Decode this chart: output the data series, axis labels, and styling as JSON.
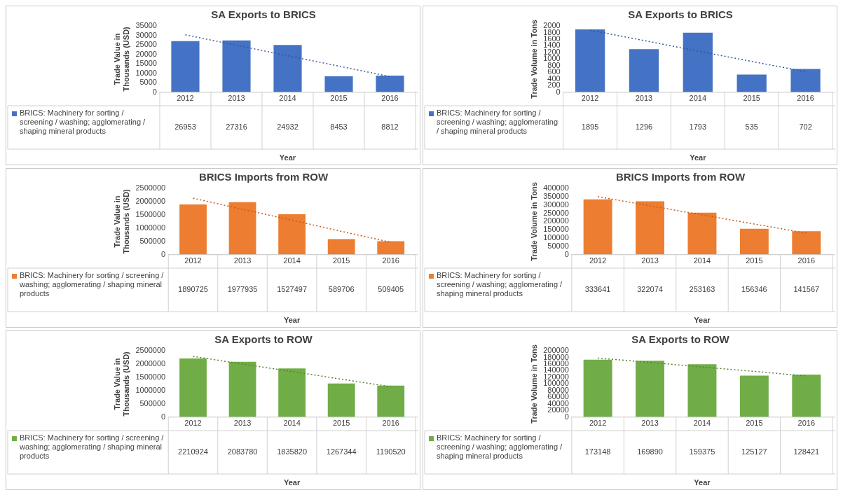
{
  "chart_data": [
    {
      "type": "bar",
      "title": "SA Exports to BRICS",
      "ylabel": "Trade Value in Thousands (USD)",
      "xlabel": "Year",
      "categories": [
        "2012",
        "2013",
        "2014",
        "2015",
        "2016"
      ],
      "ylim": [
        0,
        35000
      ],
      "yticks": [
        0,
        5000,
        10000,
        15000,
        20000,
        25000,
        30000,
        35000
      ],
      "grid": false,
      "legend": "bottom",
      "series": [
        {
          "name": "BRICS: Machinery for sorting / screening / washing; agglomerating / shaping mineral products",
          "color": "#4472c4",
          "values": [
            26953,
            27316,
            24932,
            8453,
            8812
          ],
          "value_labels": [
            "26953",
            "27316",
            "24932",
            "8453",
            "8812"
          ]
        },
        {
          "type": "line",
          "color": "#2f5597",
          "line_style": "dotted",
          "marker": "none",
          "values": [
            30300,
            24800,
            19300,
            13800,
            8300
          ]
        }
      ]
    },
    {
      "type": "bar",
      "title": "SA Exports to BRICS",
      "ylabel": "Trade Volume in Tons",
      "xlabel": "Year",
      "categories": [
        "2012",
        "2013",
        "2014",
        "2015",
        "2016"
      ],
      "ylim": [
        0,
        2000
      ],
      "yticks": [
        0,
        200,
        400,
        600,
        800,
        1000,
        1200,
        1400,
        1600,
        1800,
        2000
      ],
      "grid": false,
      "legend": "bottom",
      "series": [
        {
          "name": "BRICS: Machinery for sorting / screening / washing; agglomerating / shaping mineral products",
          "color": "#4472c4",
          "values": [
            1895,
            1296,
            1793,
            535,
            702
          ],
          "value_labels": [
            "1895",
            "1296",
            "1793",
            "535",
            "702"
          ]
        },
        {
          "type": "line",
          "color": "#2f5597",
          "line_style": "dotted",
          "marker": "none",
          "values": [
            1870,
            1560,
            1240,
            930,
            620
          ]
        }
      ]
    },
    {
      "type": "bar",
      "title": "BRICS Imports from ROW",
      "ylabel": "Trade Value in Thousands (USD)",
      "xlabel": "Year",
      "categories": [
        "2012",
        "2013",
        "2014",
        "2015",
        "2016"
      ],
      "ylim": [
        0,
        2500000
      ],
      "yticks": [
        0,
        500000,
        1000000,
        1500000,
        2000000,
        2500000
      ],
      "grid": false,
      "legend": "bottom",
      "series": [
        {
          "name": "BRICS: Machinery for sorting / screening / washing; agglomerating / shaping mineral products",
          "color": "#ed7d31",
          "values": [
            1890725,
            1977935,
            1527497,
            589706,
            509405
          ],
          "value_labels": [
            "1890725",
            "1977935",
            "1527497",
            "589706",
            "509405"
          ]
        },
        {
          "type": "line",
          "color": "#c55a11",
          "line_style": "dotted",
          "marker": "none",
          "values": [
            2130000,
            1710000,
            1300000,
            880000,
            470000
          ]
        }
      ]
    },
    {
      "type": "bar",
      "title": "BRICS Imports from ROW",
      "ylabel": "Trade Volume in Tons",
      "xlabel": "Year",
      "categories": [
        "2012",
        "2013",
        "2014",
        "2015",
        "2016"
      ],
      "ylim": [
        0,
        400000
      ],
      "yticks": [
        0,
        50000,
        100000,
        150000,
        200000,
        250000,
        300000,
        350000,
        400000
      ],
      "grid": false,
      "legend": "bottom",
      "series": [
        {
          "name": "BRICS: Machinery for sorting / screening / washing; agglomerating / shaping mineral products",
          "color": "#ed7d31",
          "values": [
            333641,
            322074,
            253163,
            156346,
            141567
          ],
          "value_labels": [
            "333641",
            "322074",
            "253163",
            "156346",
            "141567"
          ]
        },
        {
          "type": "line",
          "color": "#c55a11",
          "line_style": "dotted",
          "marker": "none",
          "values": [
            350000,
            295000,
            240000,
            185000,
            130000
          ]
        }
      ]
    },
    {
      "type": "bar",
      "title": "SA Exports to ROW",
      "ylabel": "Trade Value in Thousands (USD)",
      "xlabel": "Year",
      "categories": [
        "2012",
        "2013",
        "2014",
        "2015",
        "2016"
      ],
      "ylim": [
        0,
        2500000
      ],
      "yticks": [
        0,
        500000,
        1000000,
        1500000,
        2000000,
        2500000
      ],
      "grid": false,
      "legend": "bottom",
      "series": [
        {
          "name": "BRICS: Machinery for sorting / screening / washing; agglomerating / shaping mineral products",
          "color": "#70ad47",
          "values": [
            2210924,
            2083780,
            1835820,
            1267344,
            1190520
          ],
          "value_labels": [
            "2210924",
            "2083780",
            "1835820",
            "1267344",
            "1190520"
          ]
        },
        {
          "type": "line",
          "color": "#548235",
          "line_style": "dotted",
          "marker": "none",
          "values": [
            2290000,
            2000000,
            1720000,
            1430000,
            1150000
          ]
        }
      ]
    },
    {
      "type": "bar",
      "title": "SA Exports to ROW",
      "ylabel": "Trade Volume in Tons",
      "xlabel": "Year",
      "categories": [
        "2012",
        "2013",
        "2014",
        "2015",
        "2016"
      ],
      "ylim": [
        0,
        200000
      ],
      "yticks": [
        0,
        20000,
        40000,
        60000,
        80000,
        100000,
        120000,
        140000,
        160000,
        180000,
        200000
      ],
      "grid": false,
      "legend": "bottom",
      "series": [
        {
          "name": "BRICS: Machinery for sorting / screening / washing; agglomerating / shaping mineral products",
          "color": "#70ad47",
          "values": [
            173148,
            169890,
            159375,
            125127,
            128421
          ],
          "value_labels": [
            "173148",
            "169890",
            "159375",
            "125127",
            "128421"
          ]
        },
        {
          "type": "line",
          "color": "#548235",
          "line_style": "dotted",
          "marker": "none",
          "values": [
            178000,
            165000,
            151000,
            138000,
            124000
          ]
        }
      ]
    }
  ]
}
